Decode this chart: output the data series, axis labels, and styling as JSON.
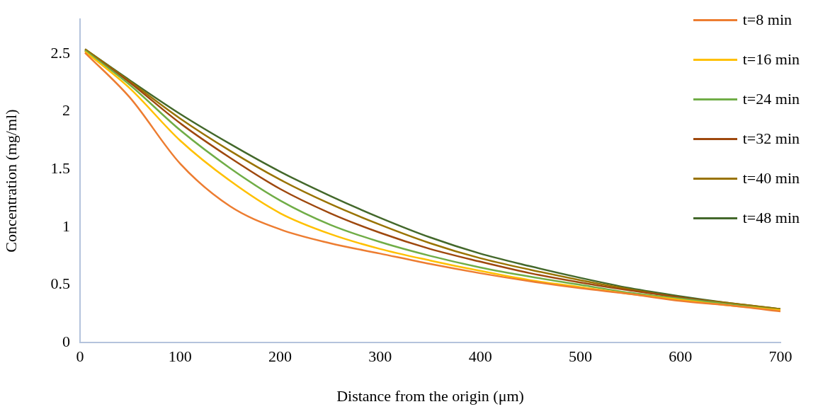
{
  "chart_data": {
    "type": "line",
    "xlabel": "Distance from the origin (μm)",
    "ylabel": "Concentration (mg/ml)",
    "x": [
      5,
      50,
      100,
      150,
      200,
      250,
      300,
      350,
      400,
      450,
      500,
      550,
      600,
      650,
      700
    ],
    "xlim": [
      0,
      700
    ],
    "xticks": [
      0,
      100,
      200,
      300,
      400,
      500,
      600,
      700
    ],
    "ylim": [
      0,
      2.8
    ],
    "yticks": [
      0,
      0.5,
      1,
      1.5,
      2,
      2.5
    ],
    "grid": false,
    "legend": "top right",
    "marker": "none",
    "line_style": "solid",
    "series": [
      {
        "name": "t=8 min",
        "color": "#ed7d31",
        "values": [
          2.51,
          2.12,
          1.55,
          1.18,
          0.98,
          0.86,
          0.77,
          0.68,
          0.6,
          0.53,
          0.47,
          0.42,
          0.36,
          0.32,
          0.27
        ]
      },
      {
        "name": "t=16 min",
        "color": "#ffc000",
        "values": [
          2.52,
          2.2,
          1.75,
          1.4,
          1.12,
          0.94,
          0.81,
          0.71,
          0.62,
          0.54,
          0.48,
          0.42,
          0.37,
          0.32,
          0.28
        ]
      },
      {
        "name": "t=24 min",
        "color": "#70ad47",
        "values": [
          2.53,
          2.23,
          1.84,
          1.51,
          1.23,
          1.02,
          0.87,
          0.75,
          0.65,
          0.57,
          0.5,
          0.43,
          0.38,
          0.33,
          0.28
        ]
      },
      {
        "name": "t=32 min",
        "color": "#9e480e",
        "values": [
          2.53,
          2.25,
          1.9,
          1.6,
          1.33,
          1.12,
          0.95,
          0.81,
          0.7,
          0.6,
          0.52,
          0.45,
          0.39,
          0.33,
          0.28
        ]
      },
      {
        "name": "t=40 min",
        "color": "#997300",
        "values": [
          2.54,
          2.26,
          1.94,
          1.66,
          1.41,
          1.2,
          1.02,
          0.86,
          0.73,
          0.63,
          0.54,
          0.46,
          0.39,
          0.34,
          0.29
        ]
      },
      {
        "name": "t=48 min",
        "color": "#43682b",
        "values": [
          2.54,
          2.27,
          1.98,
          1.72,
          1.48,
          1.27,
          1.08,
          0.91,
          0.77,
          0.66,
          0.56,
          0.47,
          0.4,
          0.34,
          0.29
        ]
      }
    ]
  }
}
